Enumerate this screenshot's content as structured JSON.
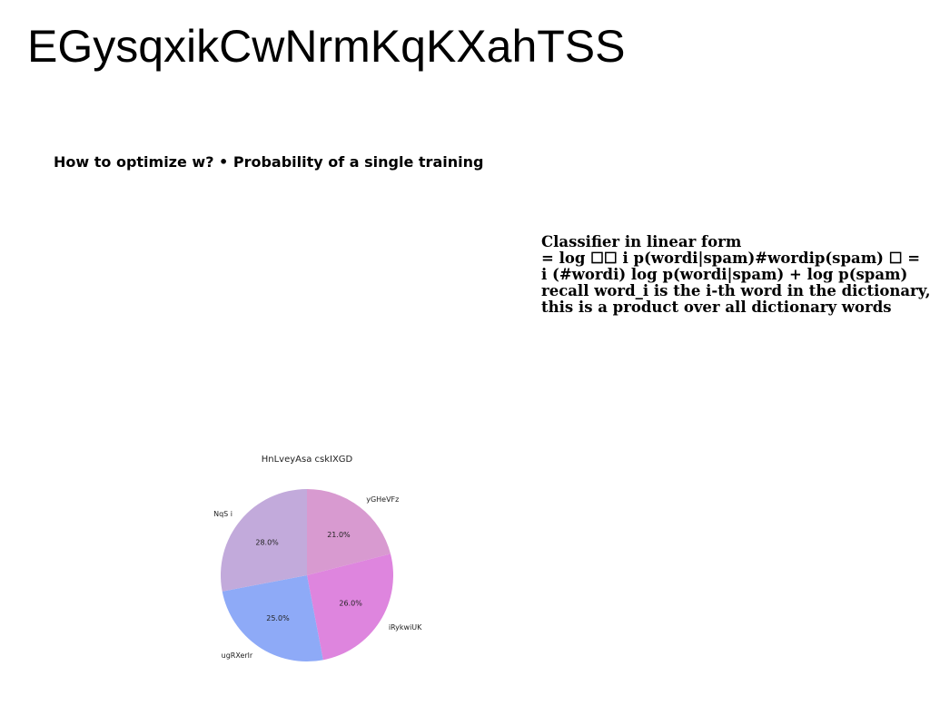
{
  "slide": {
    "title": "EGysqxikCwNrmKqKXahTSS",
    "bullet_text": "How to optimize w? • Probability of a single training",
    "formula_lines": [
      "Classifier in linear form",
      "= log ☐☐ i p(wordi|spam)#wordip(spam) ☐ =",
      "i (#wordi) log p(wordi|spam) + log p(spam)",
      "recall word_i is the i-th word in the dictionary,",
      "this is a product over all dictionary words"
    ]
  },
  "chart_data": {
    "type": "pie",
    "title": "HnLveyAsa cskIXGD",
    "slices": [
      {
        "label": "yGHeVFz",
        "value": 21.0,
        "pct_label": "21.0%",
        "color": "#d89ad0"
      },
      {
        "label": "iRykwiUK",
        "value": 26.0,
        "pct_label": "26.0%",
        "color": "#de85de"
      },
      {
        "label": "ugRXerlr",
        "value": 25.0,
        "pct_label": "25.0%",
        "color": "#8eaaf7"
      },
      {
        "label": "NqS i",
        "value": 28.0,
        "pct_label": "28.0%",
        "color": "#c2aadb"
      }
    ],
    "start_angle": 90,
    "direction": "clockwise"
  }
}
